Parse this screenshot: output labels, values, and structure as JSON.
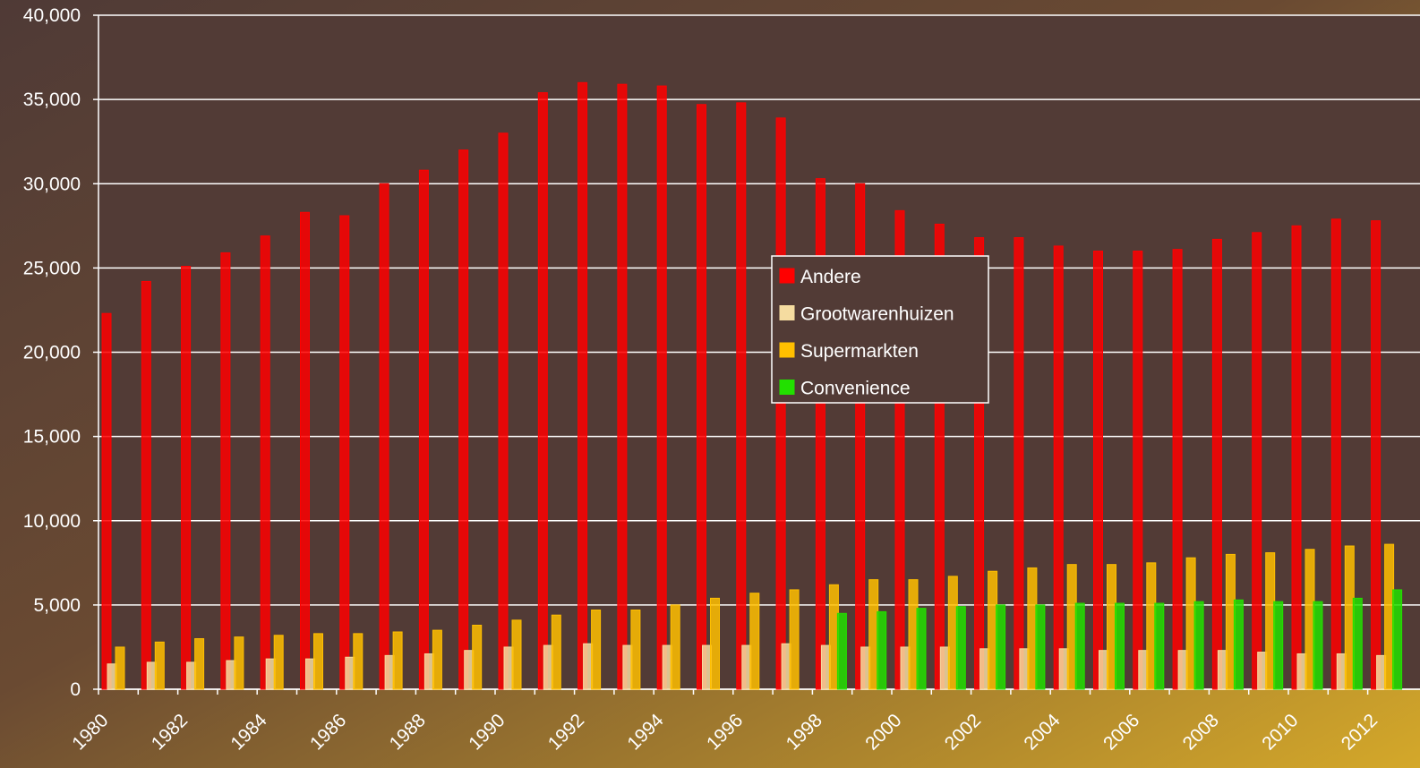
{
  "chart_data": {
    "type": "bar",
    "categories": [
      "1980",
      null,
      "1982",
      null,
      "1984",
      null,
      "1986",
      null,
      "1988",
      null,
      "1990",
      null,
      "1992",
      null,
      "1994",
      null,
      "1996",
      null,
      "1998",
      null,
      "2000",
      null,
      "2002",
      null,
      "2004",
      null,
      "2006",
      null,
      "2008",
      null,
      "2010",
      null,
      "2012"
    ],
    "series": [
      {
        "name": "Andere",
        "color": "#ff0000",
        "values": [
          22300,
          24200,
          25100,
          25900,
          26900,
          28300,
          28100,
          30000,
          30800,
          32000,
          33000,
          35400,
          36000,
          35900,
          35800,
          34700,
          34800,
          33900,
          30300,
          30000,
          28400,
          27600,
          26800,
          26800,
          26300,
          26000,
          26000,
          26100,
          26700,
          27100,
          27500,
          27900,
          27800
        ]
      },
      {
        "name": "Grootwarenhuizen",
        "color": "#f5dca0",
        "values": [
          1500,
          1600,
          1600,
          1700,
          1800,
          1800,
          1900,
          2000,
          2100,
          2300,
          2500,
          2600,
          2700,
          2600,
          2600,
          2600,
          2600,
          2700,
          2600,
          2500,
          2500,
          2500,
          2400,
          2400,
          2400,
          2300,
          2300,
          2300,
          2300,
          2200,
          2100,
          2100,
          2000
        ]
      },
      {
        "name": "Supermarkten",
        "color": "#ffbf00",
        "values": [
          2500,
          2800,
          3000,
          3100,
          3200,
          3300,
          3300,
          3400,
          3500,
          3800,
          4100,
          4400,
          4700,
          4700,
          5000,
          5400,
          5700,
          5900,
          6200,
          6500,
          6500,
          6700,
          7000,
          7200,
          7400,
          7400,
          7500,
          7800,
          8000,
          8100,
          8300,
          8500,
          8600
        ]
      },
      {
        "name": "Convenience",
        "color": "#22e000",
        "values": [
          null,
          null,
          null,
          null,
          null,
          null,
          null,
          null,
          null,
          null,
          null,
          null,
          null,
          null,
          null,
          null,
          null,
          null,
          4500,
          4600,
          4800,
          4900,
          5000,
          5000,
          5100,
          5100,
          5100,
          5200,
          5300,
          5200,
          5200,
          5400,
          5900
        ]
      }
    ],
    "ylim": [
      0,
      40000
    ],
    "yticks": [
      0,
      {
        "value": 5000,
        "label": "5,000"
      },
      {
        "value": 10000,
        "label": "10,000"
      },
      {
        "value": 15000,
        "label": "15,000"
      },
      {
        "value": 20000,
        "label": "20,000"
      },
      {
        "value": 25000,
        "label": "25,000"
      },
      {
        "value": 30000,
        "label": "30,000"
      },
      {
        "value": 35000,
        "label": "35,000"
      },
      {
        "value": 40000,
        "label": "40,000"
      }
    ],
    "grid": true,
    "legend": "center"
  }
}
